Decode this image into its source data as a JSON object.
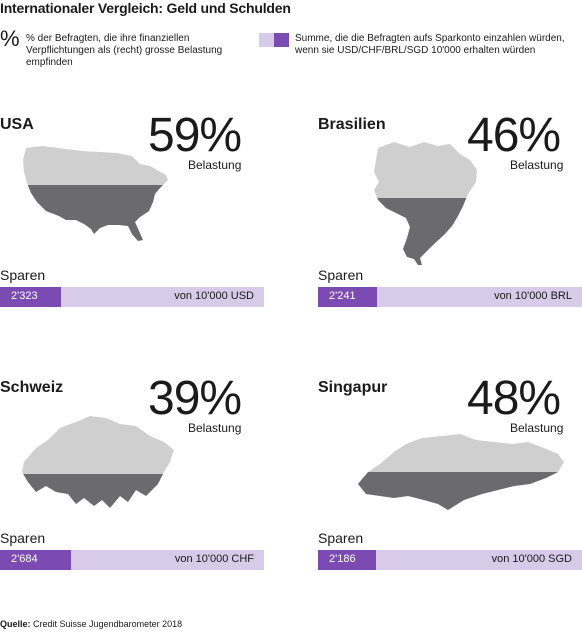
{
  "title": "Internationaler Vergleich: Geld und Schulden",
  "colors": {
    "gray": "#cfcfcf",
    "dark_gray": "#6b6b6d",
    "purple": "#7b4bb3",
    "lavender": "#d8cbe9"
  },
  "legend": {
    "pct_symbol": "%",
    "pct_text": "% der Befragten, die ihre finanziellen Verpflichtungen als (recht) grosse Belastung empfinden",
    "sum_text": "Summe, die die Befragten aufs Sparkonto einzahlen würden, wenn sie USD/CHF/BRL/SGD 10'000 erhalten würden"
  },
  "belastung_label": "Belastung",
  "sparen_label": "Sparen",
  "panels": [
    {
      "country": "USA",
      "pct_text": "59%",
      "savings_text": "2'323",
      "of_text": "von 10'000 USD",
      "map_icon": "usa-map-icon"
    },
    {
      "country": "Brasilien",
      "pct_text": "46%",
      "savings_text": "2'241",
      "of_text": "von 10'000 BRL",
      "map_icon": "brazil-map-icon"
    },
    {
      "country": "Schweiz",
      "pct_text": "39%",
      "savings_text": "2'684",
      "of_text": "von 10'000 CHF",
      "map_icon": "switzerland-map-icon"
    },
    {
      "country": "Singapur",
      "pct_text": "48%",
      "savings_text": "2'186",
      "of_text": "von 10'000 SGD",
      "map_icon": "singapore-map-icon"
    }
  ],
  "chart_data": {
    "type": "bar",
    "categories": [
      "USA",
      "Brasilien",
      "Schweiz",
      "Singapur"
    ],
    "series": [
      {
        "values": [
          59,
          46,
          39,
          48
        ]
      },
      {
        "values": [
          2323,
          2241,
          2684,
          2186
        ]
      }
    ],
    "savings_total": 10000,
    "currencies": [
      "USD",
      "BRL",
      "CHF",
      "SGD"
    ]
  },
  "source": {
    "label": "Quelle:",
    "text": "Credit Suisse Jugendbarometer 2018"
  }
}
